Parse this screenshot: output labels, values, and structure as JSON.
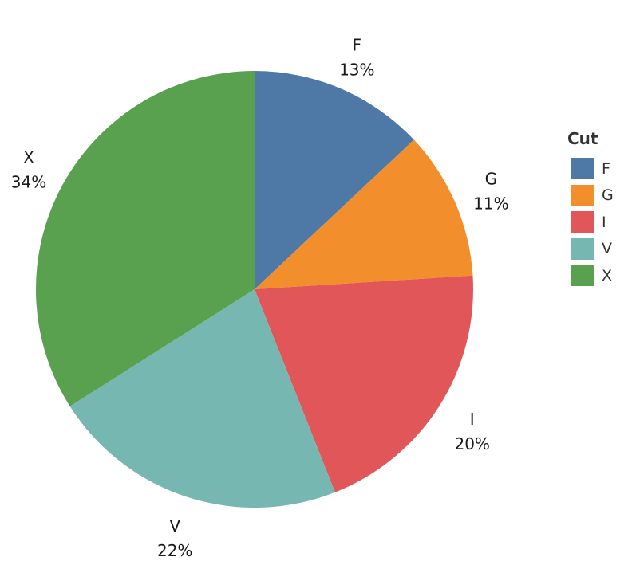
{
  "chart_data": {
    "type": "pie",
    "title": "",
    "categories": [
      "F",
      "G",
      "I",
      "V",
      "X"
    ],
    "values": [
      13,
      11,
      20,
      22,
      34
    ],
    "value_labels": [
      "13%",
      "11%",
      "20%",
      "22%",
      "34%"
    ],
    "colors": [
      "#4e79a7",
      "#f28e2b",
      "#e15759",
      "#76b7b2",
      "#59a14f"
    ],
    "start": "12 o'clock",
    "direction": "clockwise",
    "legend": {
      "title": "Cut",
      "position": "right",
      "items": [
        {
          "label": "F",
          "color": "#4e79a7"
        },
        {
          "label": "G",
          "color": "#f28e2b"
        },
        {
          "label": "I",
          "color": "#e15759"
        },
        {
          "label": "V",
          "color": "#76b7b2"
        },
        {
          "label": "X",
          "color": "#59a14f"
        }
      ]
    }
  }
}
